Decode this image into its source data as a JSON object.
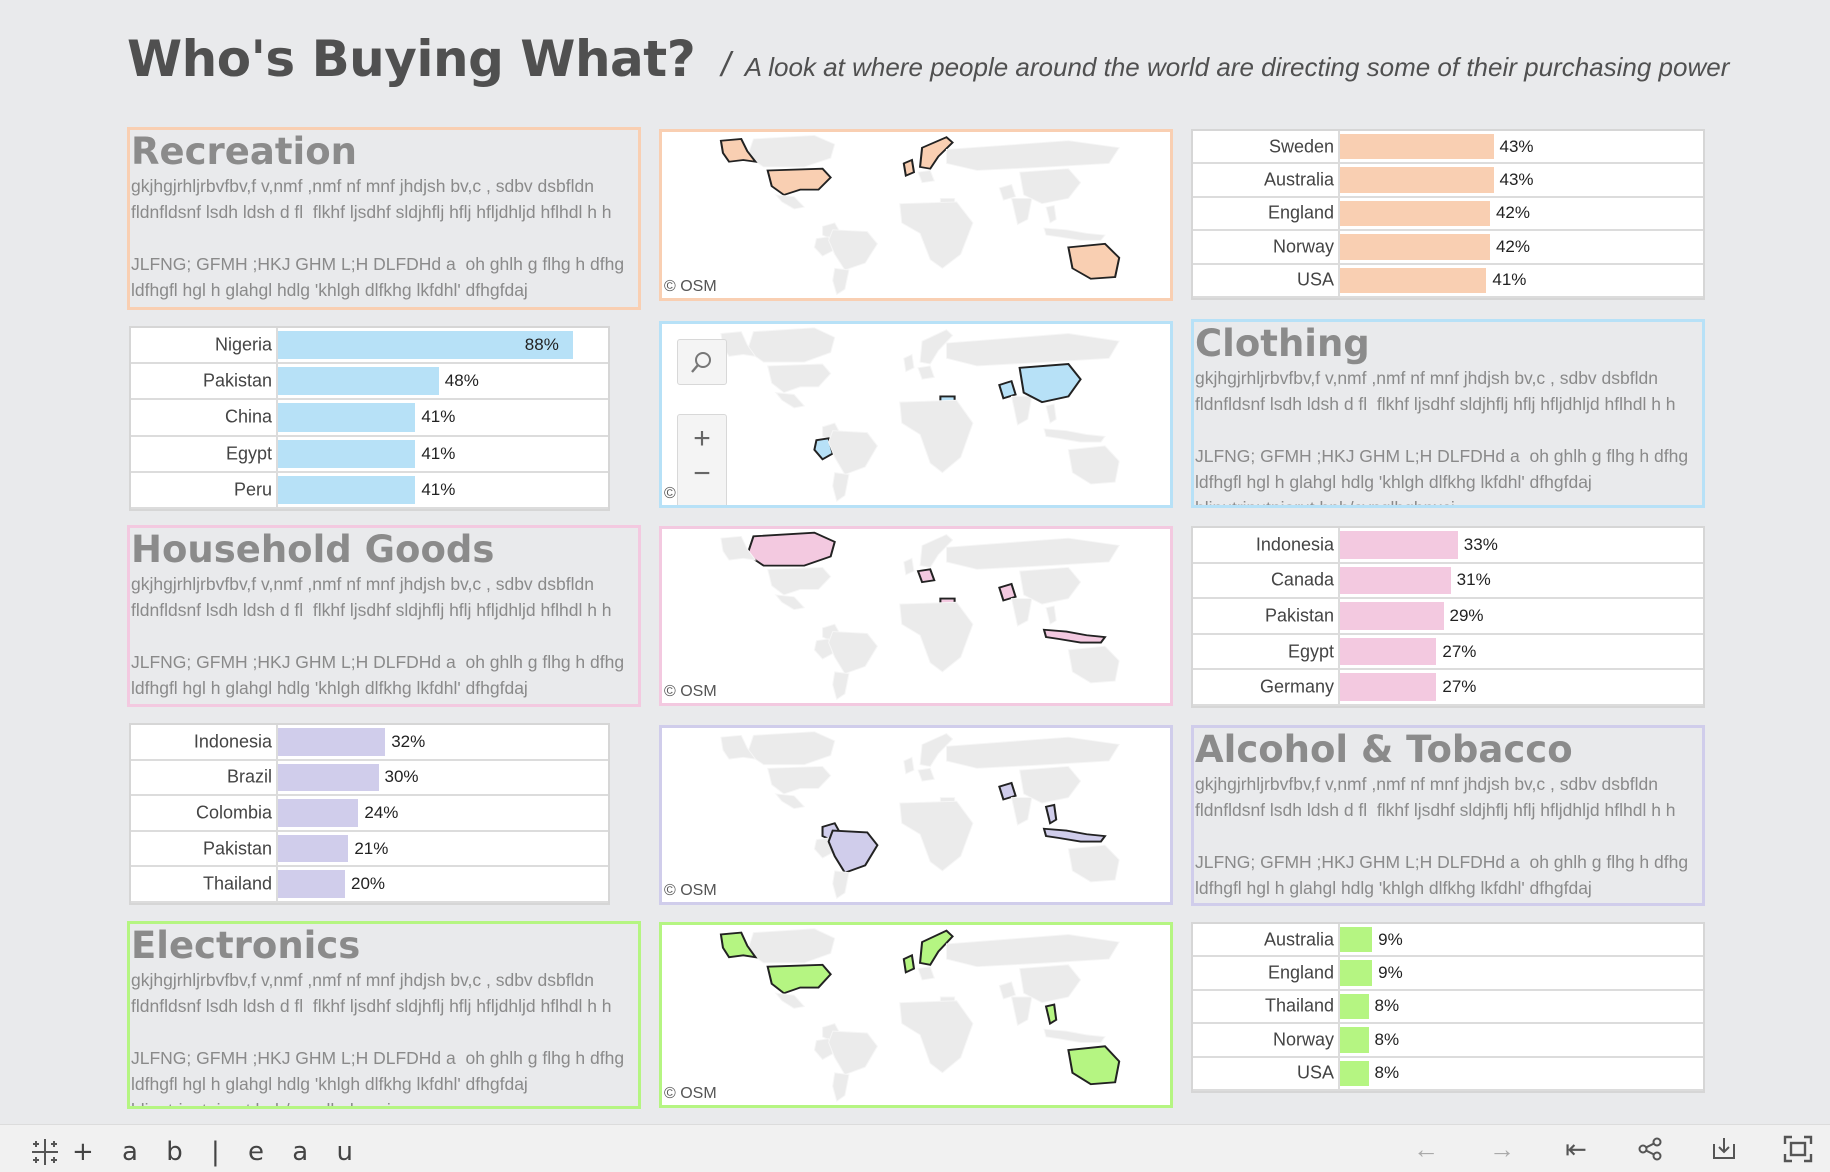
{
  "header": {
    "title": "Who's Buying What?",
    "separator": "/",
    "subtitle": "A look at where people around the world are directing some of their purchasing power"
  },
  "sections": [
    {
      "key": "recreation",
      "title": "Recreation",
      "color": "#f9cfb2",
      "text": "gkjhgjrhljrbvfbv,f v,nmf ,nmf nf mnf jhdjsh bv,c , sdbv dsbfldn\nfldnfldsnf lsdh ldsh d fl  flkhf ljsdhf sldjhflj hflj hfljdhljd hflhdl h h\n\nJLFNG; GFMH ;HKJ GHM L;H DLFDHd a  oh ghlh g flhg h dfhg\nldfhgfl hgl h glahgl hdlg 'khlgh dlfkhg lkfdhl' dfhgfdaj\nhljnutriputpiorut bnb/cvnglhgbnxci",
      "map_credit": "© OSM",
      "bars": [
        {
          "label": "Sweden",
          "value": 43,
          "display": "43%"
        },
        {
          "label": "Australia",
          "value": 43,
          "display": "43%"
        },
        {
          "label": "England",
          "value": 42,
          "display": "42%"
        },
        {
          "label": "Norway",
          "value": 42,
          "display": "42%"
        },
        {
          "label": "USA",
          "value": 41,
          "display": "41%"
        }
      ]
    },
    {
      "key": "clothing",
      "title": "Clothing",
      "color": "#b7e1f7",
      "text": "gkjhgjrhljrbvfbv,f v,nmf ,nmf nf mnf jhdjsh bv,c , sdbv dsbfldn\nfldnfldsnf lsdh ldsh d fl  flkhf ljsdhf sldjhflj hflj hfljdhljd hflhdl h h\n\nJLFNG; GFMH ;HKJ GHM L;H DLFDHd a  oh ghlh g flhg h dfhg\nldfhgfl hgl h glahgl hdlg 'khlgh dlfkhg lkfdhl' dfhgfdaj\nhljnutriputpiorut bnb/cvnglhgbnxci",
      "map_credit": "© OSM",
      "bars": [
        {
          "label": "Nigeria",
          "value": 88,
          "display": "88%"
        },
        {
          "label": "Pakistan",
          "value": 48,
          "display": "48%"
        },
        {
          "label": "China",
          "value": 41,
          "display": "41%"
        },
        {
          "label": "Egypt",
          "value": 41,
          "display": "41%"
        },
        {
          "label": "Peru",
          "value": 41,
          "display": "41%"
        }
      ]
    },
    {
      "key": "household",
      "title": "Household Goods",
      "color": "#f3c9e0",
      "text": "gkjhgjrhljrbvfbv,f v,nmf ,nmf nf mnf jhdjsh bv,c , sdbv dsbfldn\nfldnfldsnf lsdh ldsh d fl  flkhf ljsdhf sldjhflj hflj hfljdhljd hflhdl h h\n\nJLFNG; GFMH ;HKJ GHM L;H DLFDHd a  oh ghlh g flhg h dfhg\nldfhgfl hgl h glahgl hdlg 'khlgh dlfkhg lkfdhl' dfhgfdaj",
      "map_credit": "© OSM",
      "bars": [
        {
          "label": "Indonesia",
          "value": 33,
          "display": "33%"
        },
        {
          "label": "Canada",
          "value": 31,
          "display": "31%"
        },
        {
          "label": "Pakistan",
          "value": 29,
          "display": "29%"
        },
        {
          "label": "Egypt",
          "value": 27,
          "display": "27%"
        },
        {
          "label": "Germany",
          "value": 27,
          "display": "27%"
        }
      ]
    },
    {
      "key": "alcohol",
      "title": "Alcohol & Tobacco",
      "color": "#d0cdeb",
      "text": "gkjhgjrhljrbvfbv,f v,nmf ,nmf nf mnf jhdjsh bv,c , sdbv dsbfldn\nfldnfldsnf lsdh ldsh d fl  flkhf ljsdhf sldjhflj hflj hfljdhljd hflhdl h h\n\nJLFNG; GFMH ;HKJ GHM L;H DLFDHd a  oh ghlh g flhg h dfhg\nldfhgfl hgl h glahgl hdlg 'khlgh dlfkhg lkfdhl' dfhgfdaj",
      "map_credit": "© OSM",
      "bars": [
        {
          "label": "Indonesia",
          "value": 32,
          "display": "32%"
        },
        {
          "label": "Brazil",
          "value": 30,
          "display": "30%"
        },
        {
          "label": "Colombia",
          "value": 24,
          "display": "24%"
        },
        {
          "label": "Pakistan",
          "value": 21,
          "display": "21%"
        },
        {
          "label": "Thailand",
          "value": 20,
          "display": "20%"
        }
      ]
    },
    {
      "key": "electronics",
      "title": "Electronics",
      "color": "#b5f582",
      "text": "gkjhgjrhljrbvfbv,f v,nmf ,nmf nf mnf jhdjsh bv,c , sdbv dsbfldn\nfldnfldsnf lsdh ldsh d fl  flkhf ljsdhf sldjhflj hflj hfljdhljd hflhdl h h\n\nJLFNG; GFMH ;HKJ GHM L;H DLFDHd a  oh ghlh g flhg h dfhg\nldfhgfl hgl h glahgl hdlg 'khlgh dlfkhg lkfdhl' dfhgfdaj\nhljnutriputpiorut bnb/cvnglhgbnxci",
      "map_credit": "© OSM",
      "bars": [
        {
          "label": "Australia",
          "value": 9,
          "display": "9%"
        },
        {
          "label": "England",
          "value": 9,
          "display": "9%"
        },
        {
          "label": "Thailand",
          "value": 8,
          "display": "8%"
        },
        {
          "label": "Norway",
          "value": 8,
          "display": "8%"
        },
        {
          "label": "USA",
          "value": 8,
          "display": "8%"
        }
      ]
    }
  ],
  "map_controls": {
    "search": "search-icon",
    "zoom_in": "+",
    "zoom_out": "−"
  },
  "footer": {
    "logo_text": "+ a b | e a u",
    "buttons": [
      "undo-icon",
      "redo-icon",
      "revert-icon",
      "share-icon",
      "download-icon",
      "fullscreen-icon"
    ]
  }
}
